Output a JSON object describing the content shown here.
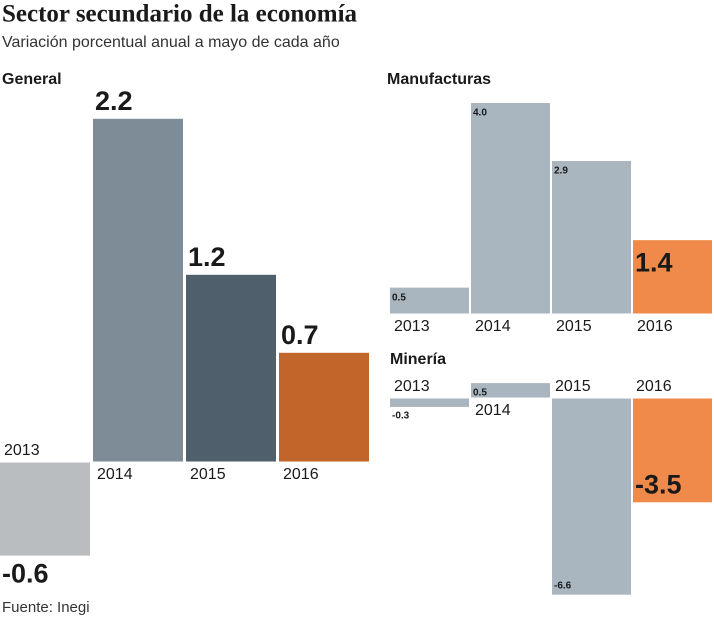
{
  "title": "Sector secundario de la economía",
  "subtitle": "Variación porcentual anual a mayo de cada año",
  "source": "Fuente: Inegi",
  "chart_data": [
    {
      "type": "bar",
      "title": "General",
      "categories": [
        "2013",
        "2014",
        "2015",
        "2016"
      ],
      "values": [
        -0.6,
        2.2,
        1.2,
        0.7
      ],
      "colors": [
        "#b9bdbf",
        "#7d8c97",
        "#4f5f6b",
        "#c2652a"
      ]
    },
    {
      "type": "bar",
      "title": "Manufacturas",
      "categories": [
        "2013",
        "2014",
        "2015",
        "2016"
      ],
      "values": [
        0.5,
        4.0,
        2.9,
        1.4
      ],
      "value_labels": [
        "0.5",
        "4.0",
        "2.9",
        "1.4"
      ],
      "colors": [
        "#a9b5bf",
        "#a9b5bf",
        "#a9b5bf",
        "#f08a4b"
      ]
    },
    {
      "type": "bar",
      "title": "Minería",
      "categories": [
        "2013",
        "2014",
        "2015",
        "2016"
      ],
      "values": [
        -0.3,
        0.5,
        -6.6,
        -3.5
      ],
      "colors": [
        "#a9b5bf",
        "#a9b5bf",
        "#a9b5bf",
        "#f08a4b"
      ]
    }
  ]
}
